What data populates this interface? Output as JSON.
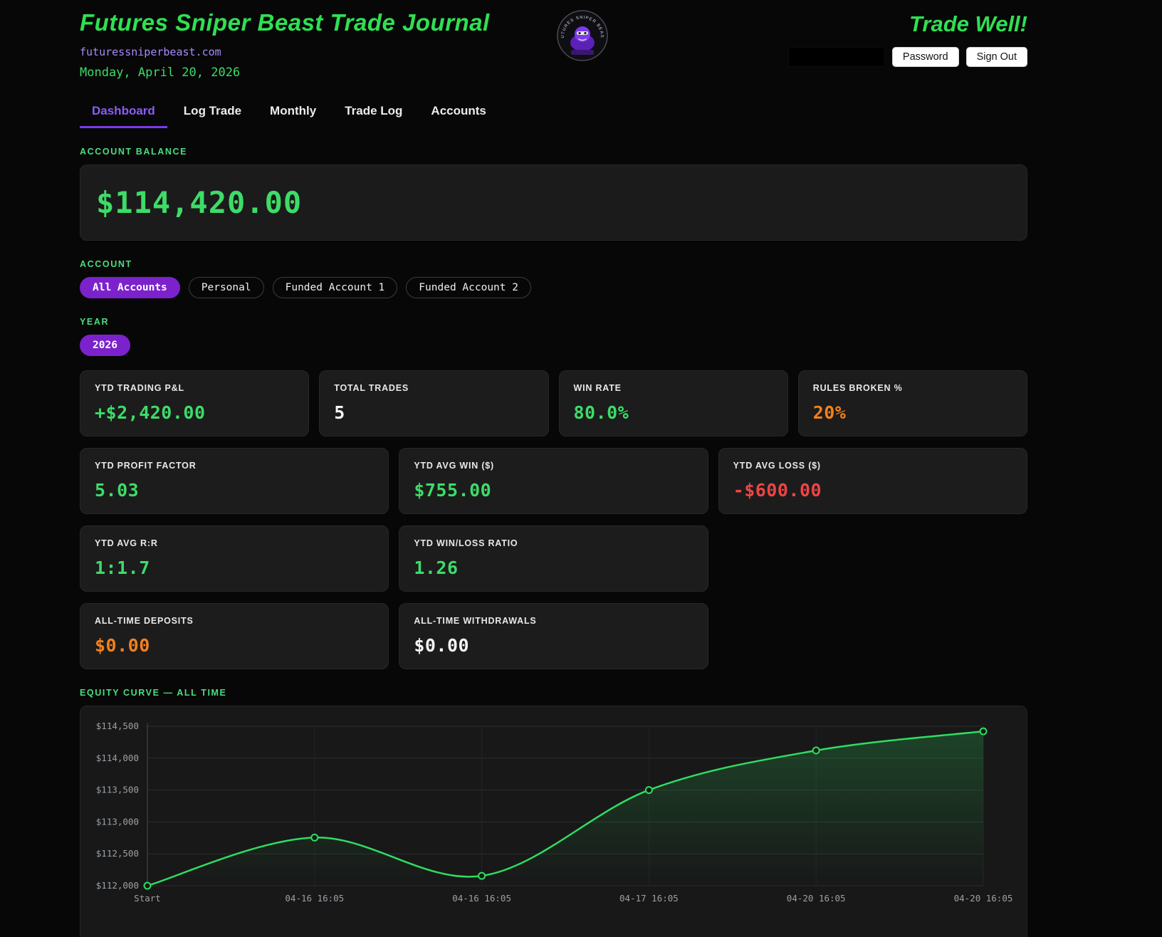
{
  "header": {
    "title": "Futures Sniper Beast Trade Journal",
    "tagline": "Trade Well!",
    "domain": "futuressniperbeast.com",
    "date": "Monday, April 20, 2026",
    "password_button": "Password",
    "signout_button": "Sign Out",
    "logo_text": "FUTURES SNIPER BEAST"
  },
  "tabs": [
    {
      "label": "Dashboard",
      "active": true
    },
    {
      "label": "Log Trade",
      "active": false
    },
    {
      "label": "Monthly",
      "active": false
    },
    {
      "label": "Trade Log",
      "active": false
    },
    {
      "label": "Accounts",
      "active": false
    }
  ],
  "balance": {
    "section_label": "ACCOUNT BALANCE",
    "value": "$114,420.00"
  },
  "account_filter": {
    "section_label": "ACCOUNT",
    "options": [
      {
        "label": "All Accounts",
        "active": true
      },
      {
        "label": "Personal",
        "active": false
      },
      {
        "label": "Funded Account 1",
        "active": false
      },
      {
        "label": "Funded Account 2",
        "active": false
      }
    ]
  },
  "year_filter": {
    "section_label": "YEAR",
    "options": [
      {
        "label": "2026",
        "active": true
      }
    ]
  },
  "stat_rows": [
    {
      "cols": 4,
      "cards": [
        {
          "label": "YTD TRADING P&L",
          "value": "+$2,420.00",
          "color": "green"
        },
        {
          "label": "TOTAL TRADES",
          "value": "5",
          "color": "white"
        },
        {
          "label": "WIN RATE",
          "value": "80.0%",
          "color": "green"
        },
        {
          "label": "RULES BROKEN %",
          "value": "20%",
          "color": "orange"
        }
      ]
    },
    {
      "cols": 3,
      "cards": [
        {
          "label": "YTD PROFIT FACTOR",
          "value": "5.03",
          "color": "green"
        },
        {
          "label": "YTD AVG WIN ($)",
          "value": "$755.00",
          "color": "green"
        },
        {
          "label": "YTD AVG LOSS ($)",
          "value": "-$600.00",
          "color": "red"
        }
      ]
    },
    {
      "cols": 3,
      "cards": [
        {
          "label": "YTD AVG R:R",
          "value": "1:1.7",
          "color": "green"
        },
        {
          "label": "YTD WIN/LOSS RATIO",
          "value": "1.26",
          "color": "green"
        }
      ]
    },
    {
      "cols": 3,
      "cards": [
        {
          "label": "ALL-TIME DEPOSITS",
          "value": "$0.00",
          "color": "orange"
        },
        {
          "label": "ALL-TIME WITHDRAWALS",
          "value": "$0.00",
          "color": "white"
        }
      ]
    }
  ],
  "chart_data": {
    "type": "line",
    "title": "EQUITY CURVE — ALL TIME",
    "x_labels": [
      "Start",
      "04-16 16:05",
      "04-16 16:05",
      "04-17 16:05",
      "04-20 16:05",
      "04-20 16:05"
    ],
    "values": [
      112000,
      112755,
      112155,
      113500,
      114120,
      114420
    ],
    "y_ticks": [
      {
        "value": 112000,
        "label": "$112,000"
      },
      {
        "value": 112500,
        "label": "$112,500"
      },
      {
        "value": 113000,
        "label": "$113,000"
      },
      {
        "value": 113500,
        "label": "$113,500"
      },
      {
        "value": 114000,
        "label": "$114,000"
      },
      {
        "value": 114500,
        "label": "$114,500"
      }
    ],
    "ylim": [
      112000,
      114500
    ],
    "line_color": "#2fdd63",
    "marker_fill": "#0d1f12",
    "grid": true,
    "legend": "none"
  },
  "colors": {
    "green": "#3ddc68",
    "purple": "#7c22cc",
    "accent_purple": "#8b5cf6",
    "orange": "#f2801e",
    "red": "#ef4444",
    "title_green": "#2fe052"
  }
}
